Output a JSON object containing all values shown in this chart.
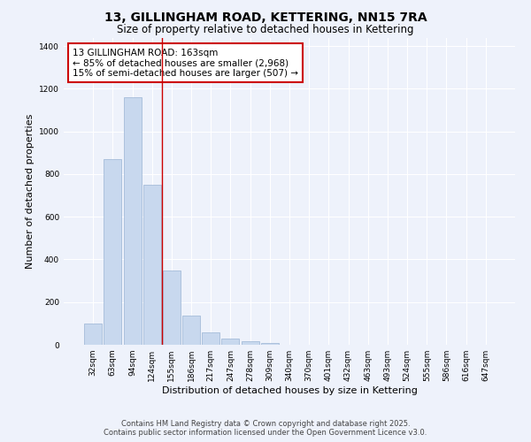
{
  "title": "13, GILLINGHAM ROAD, KETTERING, NN15 7RA",
  "subtitle": "Size of property relative to detached houses in Kettering",
  "xlabel": "Distribution of detached houses by size in Kettering",
  "ylabel": "Number of detached properties",
  "bar_color": "#c8d8ee",
  "bar_edge_color": "#9ab4d4",
  "categories": [
    "32sqm",
    "63sqm",
    "94sqm",
    "124sqm",
    "155sqm",
    "186sqm",
    "217sqm",
    "247sqm",
    "278sqm",
    "309sqm",
    "340sqm",
    "370sqm",
    "401sqm",
    "432sqm",
    "463sqm",
    "493sqm",
    "524sqm",
    "555sqm",
    "586sqm",
    "616sqm",
    "647sqm"
  ],
  "values": [
    100,
    870,
    1160,
    750,
    350,
    135,
    60,
    30,
    15,
    10,
    0,
    0,
    0,
    0,
    0,
    0,
    0,
    0,
    0,
    0,
    0
  ],
  "ylim": [
    0,
    1440
  ],
  "yticks": [
    0,
    200,
    400,
    600,
    800,
    1000,
    1200,
    1400
  ],
  "redline_x": 3.5,
  "annotation_title": "13 GILLINGHAM ROAD: 163sqm",
  "annotation_line1": "← 85% of detached houses are smaller (2,968)",
  "annotation_line2": "15% of semi-detached houses are larger (507) →",
  "annotation_box_color": "#ffffff",
  "annotation_border_color": "#cc0000",
  "redline_color": "#cc0000",
  "background_color": "#eef2fb",
  "plot_bg_color": "#eef2fb",
  "footer_line1": "Contains HM Land Registry data © Crown copyright and database right 2025.",
  "footer_line2": "Contains public sector information licensed under the Open Government Licence v3.0.",
  "grid_color": "#ffffff",
  "title_fontsize": 10,
  "subtitle_fontsize": 8.5,
  "axis_label_fontsize": 8,
  "tick_fontsize": 6.5,
  "footer_fontsize": 6,
  "annotation_fontsize": 7.5
}
